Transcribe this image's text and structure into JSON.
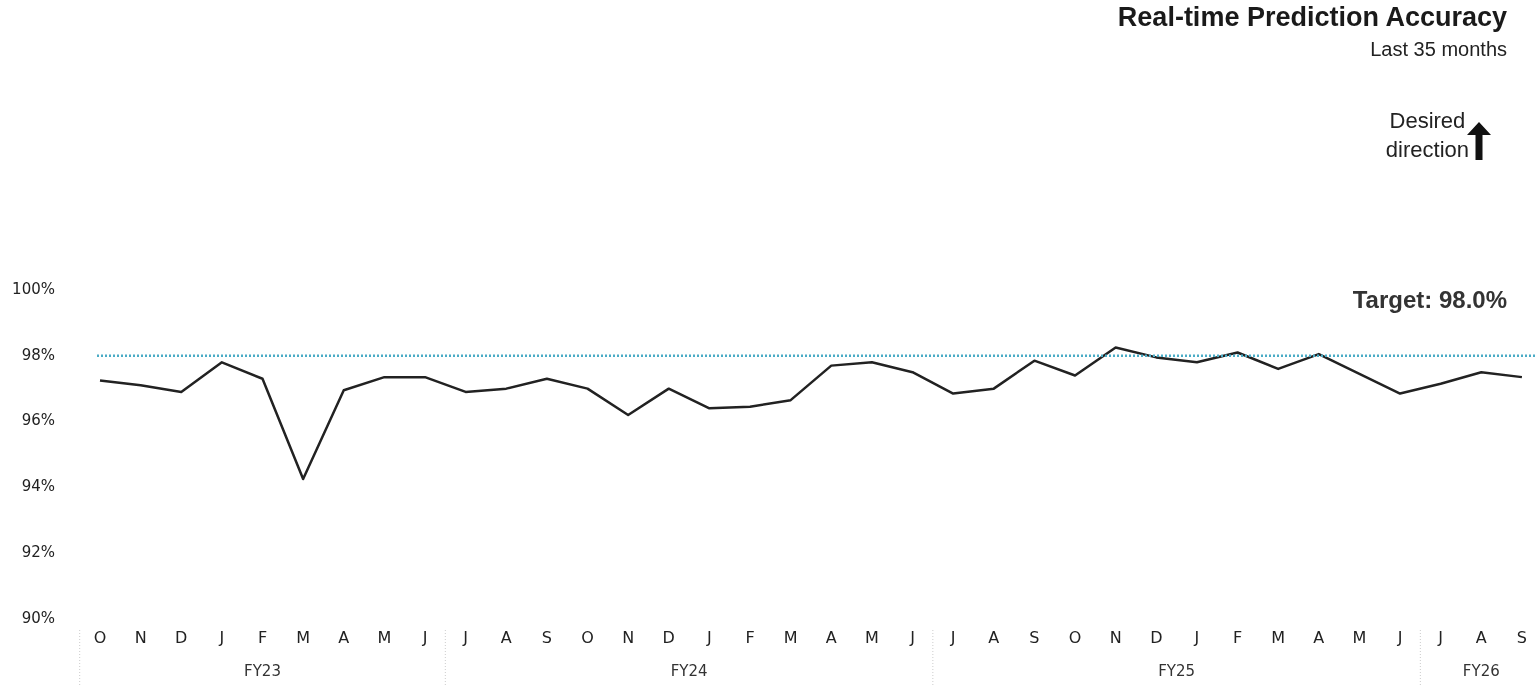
{
  "chart_data": {
    "type": "line",
    "title": "Real-time Prediction Accuracy",
    "subtitle": "Last 35 months",
    "categories": [
      "O",
      "N",
      "D",
      "J",
      "F",
      "M",
      "A",
      "M",
      "J",
      "J",
      "A",
      "S",
      "O",
      "N",
      "D",
      "J",
      "F",
      "M",
      "A",
      "M",
      "J",
      "J",
      "A",
      "S",
      "O",
      "N",
      "D",
      "J",
      "F",
      "M",
      "A",
      "M",
      "J",
      "J",
      "A",
      "S"
    ],
    "series": [
      {
        "color": "#222222",
        "values": [
          97.25,
          97.1,
          96.9,
          97.8,
          97.3,
          94.25,
          96.95,
          97.35,
          97.35,
          96.9,
          97.0,
          97.3,
          97.0,
          96.2,
          97.0,
          96.4,
          96.45,
          96.65,
          97.7,
          97.8,
          97.5,
          96.85,
          97.0,
          97.85,
          97.4,
          98.25,
          97.95,
          97.8,
          98.1,
          97.6,
          98.05,
          97.45,
          96.85,
          97.15,
          97.5,
          97.35
        ]
      }
    ],
    "ylim": [
      90,
      100
    ],
    "yticks": [
      {
        "value": 90,
        "label": "90%"
      },
      {
        "value": 92,
        "label": "92%"
      },
      {
        "value": 94,
        "label": "94%"
      },
      {
        "value": 96,
        "label": "96%"
      },
      {
        "value": 98,
        "label": "98%"
      },
      {
        "value": 100,
        "label": "100%"
      }
    ],
    "ref_lines": [
      {
        "axis": "y",
        "value": 98,
        "label": "Target: 98.0%",
        "color": "#4bacc6",
        "line_style": "dotted"
      }
    ],
    "annotations": [
      "Desired direction",
      "FY23",
      "FY24",
      "FY25",
      "FY26"
    ],
    "grid": false,
    "legend": false,
    "marker": "none",
    "line_style": "solid"
  }
}
